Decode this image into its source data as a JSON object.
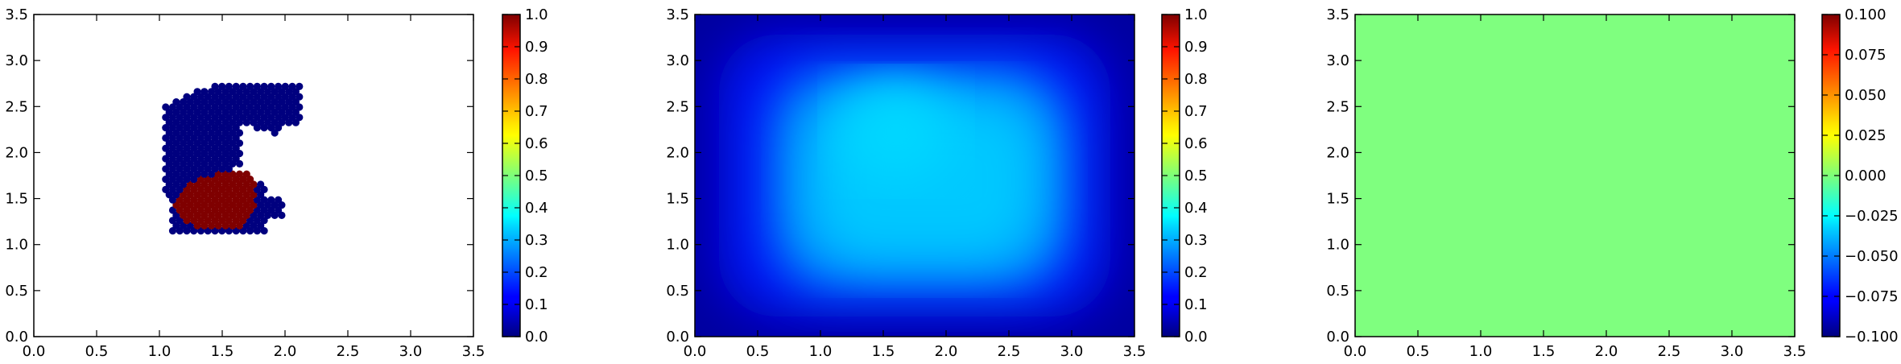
{
  "chart_data": [
    {
      "type": "scatter",
      "title": "",
      "xlabel": "",
      "ylabel": "",
      "xlim": [
        0,
        3.5
      ],
      "ylim": [
        0,
        3.5
      ],
      "x_ticks": [
        "0.0",
        "0.5",
        "1.0",
        "1.5",
        "2.0",
        "2.5",
        "3.0",
        "3.5"
      ],
      "y_ticks": [
        "0.0",
        "0.5",
        "1.0",
        "1.5",
        "2.0",
        "2.5",
        "3.0",
        "3.5"
      ],
      "colormap": "jet",
      "colorbar": {
        "range": [
          0,
          1
        ],
        "ticks": [
          "0.0",
          "0.1",
          "0.2",
          "0.3",
          "0.4",
          "0.5",
          "0.6",
          "0.7",
          "0.8",
          "0.9",
          "1.0"
        ]
      },
      "grid": false,
      "series": [
        {
          "value": 0.0,
          "color": "#00007f",
          "region": "crescent shaped cluster of points spanning x 1.05 to 2.1, y 1.15 to 2.75"
        },
        {
          "value": 1.0,
          "color": "#7f0000",
          "region": "blob of points centred near (1.45, 1.45), x 1.15 to 1.8, y 1.15 to 1.8"
        }
      ]
    },
    {
      "type": "heatmap",
      "title": "",
      "xlabel": "",
      "ylabel": "",
      "xlim": [
        0,
        3.5
      ],
      "ylim": [
        0,
        3.5
      ],
      "x_ticks": [
        "0.0",
        "0.5",
        "1.0",
        "1.5",
        "2.0",
        "2.5",
        "3.0",
        "3.5"
      ],
      "y_ticks": [
        "0.0",
        "0.5",
        "1.0",
        "1.5",
        "2.0",
        "2.5",
        "3.0",
        "3.5"
      ],
      "colormap": "jet",
      "colorbar": {
        "range": [
          0,
          1
        ],
        "ticks": [
          "0.0",
          "0.1",
          "0.2",
          "0.3",
          "0.4",
          "0.5",
          "0.6",
          "0.7",
          "0.8",
          "0.9",
          "1.0"
        ]
      },
      "field": {
        "peak_value": 0.32,
        "peak_center": [
          1.7,
          2.0
        ],
        "edge_value": 0.02,
        "shape": "rounded square plateau"
      },
      "grid": false
    },
    {
      "type": "heatmap",
      "title": "",
      "xlabel": "",
      "ylabel": "",
      "xlim": [
        0,
        3.5
      ],
      "ylim": [
        0,
        3.5
      ],
      "x_ticks": [
        "0.0",
        "0.5",
        "1.0",
        "1.5",
        "2.0",
        "2.5",
        "3.0",
        "3.5"
      ],
      "y_ticks": [
        "0.0",
        "0.5",
        "1.0",
        "1.5",
        "2.0",
        "2.5",
        "3.0",
        "3.5"
      ],
      "colormap": "jet",
      "colorbar": {
        "range": [
          -0.1,
          0.1
        ],
        "ticks": [
          "−0.100",
          "−0.075",
          "−0.050",
          "−0.025",
          "0.000",
          "0.025",
          "0.050",
          "0.075",
          "0.100"
        ]
      },
      "field": {
        "constant_value": 0.0
      },
      "grid": false
    }
  ]
}
